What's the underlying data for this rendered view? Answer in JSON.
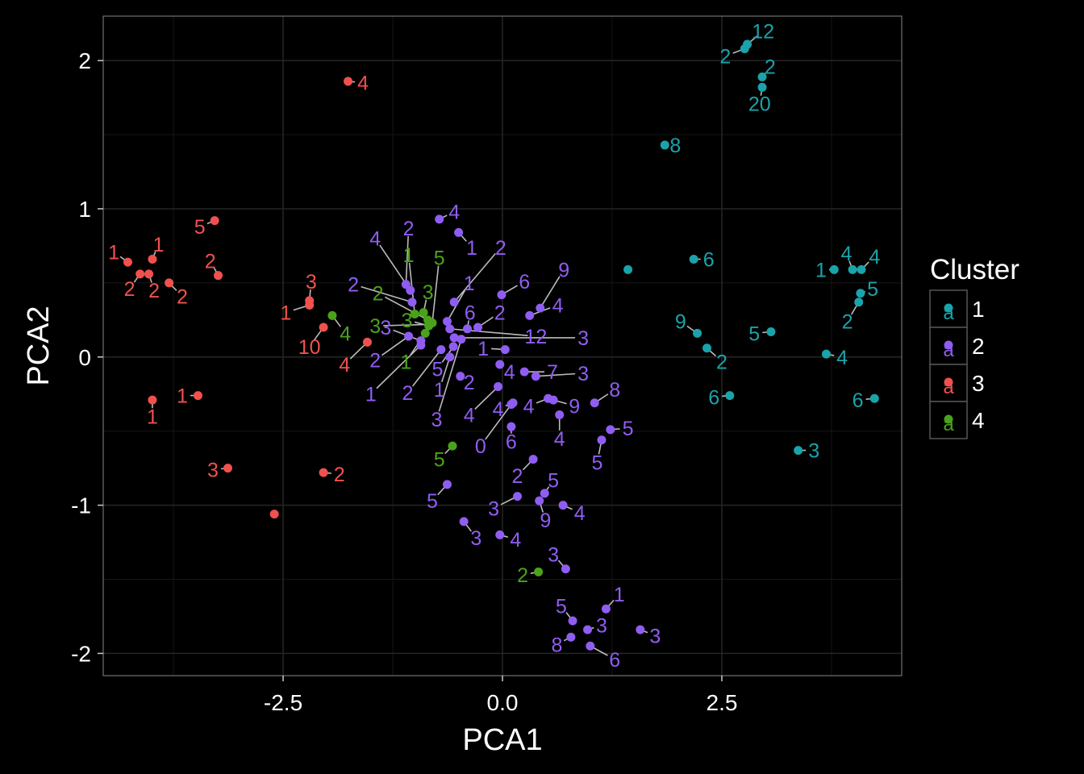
{
  "chart_data": {
    "type": "scatter",
    "title": "",
    "xlabel": "PCA1",
    "ylabel": "PCA2",
    "xlim": [
      -4.55,
      4.55
    ],
    "ylim": [
      -2.15,
      2.3
    ],
    "x_ticks": [
      -2.5,
      0.0,
      2.5
    ],
    "x_tick_labels": [
      "-2.5",
      "0.0",
      "2.5"
    ],
    "y_ticks": [
      -2,
      -1,
      0,
      1,
      2
    ],
    "y_tick_labels": [
      "-2",
      "-1",
      "0",
      "1",
      "2"
    ],
    "grid": true,
    "legend_position": "right",
    "legend": {
      "title": "Cluster",
      "glyph": "a",
      "entries": [
        {
          "label": "1",
          "cluster": "1"
        },
        {
          "label": "2",
          "cluster": "2"
        },
        {
          "label": "3",
          "cluster": "3"
        },
        {
          "label": "4",
          "cluster": "4"
        }
      ]
    },
    "colors": {
      "1": "#1aa3aa",
      "2": "#8f5df2",
      "3": "#f0514e",
      "4": "#4aa21a"
    },
    "background": "#000000",
    "grid_color": "#262626",
    "connector_color": "#bbbbbb",
    "points": [
      {
        "cluster": "1",
        "x": 2.79,
        "y": 2.11,
        "label": "12",
        "lx": 2.97,
        "ly": 2.2
      },
      {
        "cluster": "1",
        "x": 2.76,
        "y": 2.08,
        "label": "2",
        "lx": 2.54,
        "ly": 2.03
      },
      {
        "cluster": "1",
        "x": 2.96,
        "y": 1.89,
        "label": "2",
        "lx": 3.05,
        "ly": 1.96
      },
      {
        "cluster": "1",
        "x": 2.96,
        "y": 1.82,
        "label": "20",
        "lx": 2.93,
        "ly": 1.71
      },
      {
        "cluster": "1",
        "x": 1.85,
        "y": 1.43,
        "label": "8",
        "lx": 1.97,
        "ly": 1.43
      },
      {
        "cluster": "1",
        "x": 2.18,
        "y": 0.66,
        "label": "6",
        "lx": 2.35,
        "ly": 0.66
      },
      {
        "cluster": "1",
        "x": 1.43,
        "y": 0.59,
        "label": "",
        "lx": 1.43,
        "ly": 0.59
      },
      {
        "cluster": "1",
        "x": 3.78,
        "y": 0.59,
        "label": "1",
        "lx": 3.63,
        "ly": 0.59
      },
      {
        "cluster": "1",
        "x": 3.99,
        "y": 0.59,
        "label": "4",
        "lx": 3.92,
        "ly": 0.7
      },
      {
        "cluster": "1",
        "x": 4.09,
        "y": 0.59,
        "label": "4",
        "lx": 4.24,
        "ly": 0.68
      },
      {
        "cluster": "1",
        "x": 4.08,
        "y": 0.43,
        "label": "5",
        "lx": 4.22,
        "ly": 0.46
      },
      {
        "cluster": "1",
        "x": 4.06,
        "y": 0.37,
        "label": "2",
        "lx": 3.93,
        "ly": 0.24
      },
      {
        "cluster": "1",
        "x": 2.22,
        "y": 0.16,
        "label": "9",
        "lx": 2.03,
        "ly": 0.24
      },
      {
        "cluster": "1",
        "x": 3.06,
        "y": 0.17,
        "label": "5",
        "lx": 2.87,
        "ly": 0.16
      },
      {
        "cluster": "1",
        "x": 2.33,
        "y": 0.06,
        "label": "2",
        "lx": 2.5,
        "ly": -0.03
      },
      {
        "cluster": "1",
        "x": 3.69,
        "y": 0.02,
        "label": "4",
        "lx": 3.87,
        "ly": 0.0
      },
      {
        "cluster": "1",
        "x": 2.59,
        "y": -0.26,
        "label": "6",
        "lx": 2.41,
        "ly": -0.27
      },
      {
        "cluster": "1",
        "x": 4.24,
        "y": -0.28,
        "label": "6",
        "lx": 4.05,
        "ly": -0.29
      },
      {
        "cluster": "1",
        "x": 3.37,
        "y": -0.63,
        "label": "3",
        "lx": 3.55,
        "ly": -0.63
      },
      {
        "cluster": "2",
        "x": -0.72,
        "y": 0.93,
        "label": "4",
        "lx": -0.55,
        "ly": 0.98
      },
      {
        "cluster": "2",
        "x": -0.5,
        "y": 0.84,
        "label": "1",
        "lx": -0.35,
        "ly": 0.74
      },
      {
        "cluster": "2",
        "x": -1.1,
        "y": 0.49,
        "label": "2",
        "lx": -1.07,
        "ly": 0.87
      },
      {
        "cluster": "2",
        "x": -1.05,
        "y": 0.45,
        "label": "4",
        "lx": -1.45,
        "ly": 0.8
      },
      {
        "cluster": "2",
        "x": -0.55,
        "y": 0.37,
        "label": "2",
        "lx": -0.02,
        "ly": 0.74
      },
      {
        "cluster": "2",
        "x": -1.03,
        "y": 0.37,
        "label": "2",
        "lx": -1.7,
        "ly": 0.49
      },
      {
        "cluster": "2",
        "x": -0.63,
        "y": 0.24,
        "label": "1",
        "lx": -0.38,
        "ly": 0.5
      },
      {
        "cluster": "2",
        "x": -0.01,
        "y": 0.42,
        "label": "6",
        "lx": 0.25,
        "ly": 0.51
      },
      {
        "cluster": "2",
        "x": 0.43,
        "y": 0.33,
        "label": "9",
        "lx": 0.7,
        "ly": 0.59
      },
      {
        "cluster": "2",
        "x": 0.31,
        "y": 0.28,
        "label": "4",
        "lx": 0.63,
        "ly": 0.35
      },
      {
        "cluster": "2",
        "x": -0.4,
        "y": 0.19,
        "label": "6",
        "lx": -0.37,
        "ly": 0.3
      },
      {
        "cluster": "2",
        "x": -0.28,
        "y": 0.2,
        "label": "2",
        "lx": -0.03,
        "ly": 0.3
      },
      {
        "cluster": "2",
        "x": -0.6,
        "y": 0.19,
        "label": "12",
        "lx": 0.38,
        "ly": 0.14
      },
      {
        "cluster": "2",
        "x": -0.55,
        "y": 0.13,
        "label": "3",
        "lx": 0.92,
        "ly": 0.13
      },
      {
        "cluster": "2",
        "x": -0.93,
        "y": 0.11,
        "label": "3",
        "lx": -1.33,
        "ly": 0.2
      },
      {
        "cluster": "2",
        "x": -0.56,
        "y": 0.07,
        "label": "5",
        "lx": -0.74,
        "ly": -0.08
      },
      {
        "cluster": "2",
        "x": 0.03,
        "y": 0.05,
        "label": "1",
        "lx": -0.22,
        "ly": 0.06
      },
      {
        "cluster": "2",
        "x": -1.07,
        "y": 0.14,
        "label": "2",
        "lx": -1.45,
        "ly": -0.02
      },
      {
        "cluster": "2",
        "x": -0.03,
        "y": -0.05,
        "label": "4",
        "lx": 0.08,
        "ly": -0.1
      },
      {
        "cluster": "2",
        "x": 0.25,
        "y": -0.1,
        "label": "7",
        "lx": 0.57,
        "ly": -0.1
      },
      {
        "cluster": "2",
        "x": 0.38,
        "y": -0.13,
        "label": "3",
        "lx": 0.92,
        "ly": -0.11
      },
      {
        "cluster": "2",
        "x": -0.48,
        "y": -0.13,
        "label": "2",
        "lx": -0.38,
        "ly": -0.17
      },
      {
        "cluster": "2",
        "x": -0.93,
        "y": 0.08,
        "label": "1",
        "lx": -1.5,
        "ly": -0.25
      },
      {
        "cluster": "2",
        "x": -0.7,
        "y": 0.05,
        "label": "2",
        "lx": -1.08,
        "ly": -0.24
      },
      {
        "cluster": "2",
        "x": -0.6,
        "y": 0.0,
        "label": "1",
        "lx": -0.72,
        "ly": -0.22
      },
      {
        "cluster": "2",
        "x": -0.47,
        "y": 0.12,
        "label": "3",
        "lx": -0.75,
        "ly": -0.42
      },
      {
        "cluster": "2",
        "x": -0.05,
        "y": -0.2,
        "label": "4",
        "lx": -0.38,
        "ly": -0.39
      },
      {
        "cluster": "2",
        "x": 0.12,
        "y": -0.31,
        "label": "4",
        "lx": -0.05,
        "ly": -0.35
      },
      {
        "cluster": "2",
        "x": 0.52,
        "y": -0.28,
        "label": "4",
        "lx": 0.3,
        "ly": -0.33
      },
      {
        "cluster": "2",
        "x": 0.58,
        "y": -0.29,
        "label": "9",
        "lx": 0.82,
        "ly": -0.33
      },
      {
        "cluster": "2",
        "x": 1.05,
        "y": -0.31,
        "label": "8",
        "lx": 1.28,
        "ly": -0.22
      },
      {
        "cluster": "2",
        "x": 0.1,
        "y": -0.32,
        "label": "0",
        "lx": -0.25,
        "ly": -0.6
      },
      {
        "cluster": "2",
        "x": 0.1,
        "y": -0.47,
        "label": "6",
        "lx": 0.1,
        "ly": -0.57
      },
      {
        "cluster": "2",
        "x": 0.65,
        "y": -0.39,
        "label": "4",
        "lx": 0.65,
        "ly": -0.55
      },
      {
        "cluster": "2",
        "x": 1.23,
        "y": -0.49,
        "label": "5",
        "lx": 1.43,
        "ly": -0.48
      },
      {
        "cluster": "2",
        "x": 1.13,
        "y": -0.56,
        "label": "5",
        "lx": 1.08,
        "ly": -0.71
      },
      {
        "cluster": "2",
        "x": 0.35,
        "y": -0.69,
        "label": "2",
        "lx": 0.17,
        "ly": -0.8
      },
      {
        "cluster": "2",
        "x": 0.48,
        "y": -0.92,
        "label": "5",
        "lx": 0.58,
        "ly": -0.83
      },
      {
        "cluster": "2",
        "x": -0.63,
        "y": -0.86,
        "label": "5",
        "lx": -0.8,
        "ly": -0.97
      },
      {
        "cluster": "2",
        "x": 0.17,
        "y": -0.94,
        "label": "3",
        "lx": -0.1,
        "ly": -1.02
      },
      {
        "cluster": "2",
        "x": 0.42,
        "y": -0.97,
        "label": "9",
        "lx": 0.49,
        "ly": -1.1
      },
      {
        "cluster": "2",
        "x": 0.69,
        "y": -1.0,
        "label": "4",
        "lx": 0.88,
        "ly": -1.05
      },
      {
        "cluster": "2",
        "x": -0.44,
        "y": -1.11,
        "label": "3",
        "lx": -0.3,
        "ly": -1.22
      },
      {
        "cluster": "2",
        "x": -0.03,
        "y": -1.2,
        "label": "4",
        "lx": 0.15,
        "ly": -1.23
      },
      {
        "cluster": "2",
        "x": 0.72,
        "y": -1.43,
        "label": "3",
        "lx": 0.58,
        "ly": -1.33
      },
      {
        "cluster": "2",
        "x": 1.18,
        "y": -1.7,
        "label": "1",
        "lx": 1.33,
        "ly": -1.6
      },
      {
        "cluster": "2",
        "x": 0.8,
        "y": -1.78,
        "label": "5",
        "lx": 0.67,
        "ly": -1.68
      },
      {
        "cluster": "2",
        "x": 0.97,
        "y": -1.84,
        "label": "3",
        "lx": 1.13,
        "ly": -1.81
      },
      {
        "cluster": "2",
        "x": 1.57,
        "y": -1.84,
        "label": "3",
        "lx": 1.74,
        "ly": -1.88
      },
      {
        "cluster": "2",
        "x": 0.78,
        "y": -1.89,
        "label": "8",
        "lx": 0.62,
        "ly": -1.94
      },
      {
        "cluster": "2",
        "x": 1.0,
        "y": -1.95,
        "label": "6",
        "lx": 1.28,
        "ly": -2.04
      },
      {
        "cluster": "3",
        "x": -1.76,
        "y": 1.86,
        "label": "4",
        "lx": -1.59,
        "ly": 1.85
      },
      {
        "cluster": "3",
        "x": -3.28,
        "y": 0.92,
        "label": "5",
        "lx": -3.45,
        "ly": 0.88
      },
      {
        "cluster": "3",
        "x": -4.27,
        "y": 0.64,
        "label": "1",
        "lx": -4.43,
        "ly": 0.71
      },
      {
        "cluster": "3",
        "x": -3.99,
        "y": 0.66,
        "label": "1",
        "lx": -3.92,
        "ly": 0.76
      },
      {
        "cluster": "3",
        "x": -4.13,
        "y": 0.56,
        "label": "2",
        "lx": -4.25,
        "ly": 0.46
      },
      {
        "cluster": "3",
        "x": -4.03,
        "y": 0.56,
        "label": "2",
        "lx": -3.97,
        "ly": 0.45
      },
      {
        "cluster": "3",
        "x": -3.8,
        "y": 0.5,
        "label": "2",
        "lx": -3.65,
        "ly": 0.41
      },
      {
        "cluster": "3",
        "x": -3.24,
        "y": 0.55,
        "label": "2",
        "lx": -3.33,
        "ly": 0.65
      },
      {
        "cluster": "3",
        "x": -2.2,
        "y": 0.38,
        "label": "3",
        "lx": -2.18,
        "ly": 0.51
      },
      {
        "cluster": "3",
        "x": -2.2,
        "y": 0.35,
        "label": "1",
        "lx": -2.47,
        "ly": 0.3
      },
      {
        "cluster": "3",
        "x": -2.04,
        "y": 0.2,
        "label": "10",
        "lx": -2.2,
        "ly": 0.07
      },
      {
        "cluster": "3",
        "x": -1.54,
        "y": 0.1,
        "label": "4",
        "lx": -1.8,
        "ly": -0.05
      },
      {
        "cluster": "3",
        "x": -3.99,
        "y": -0.29,
        "label": "1",
        "lx": -3.99,
        "ly": -0.4
      },
      {
        "cluster": "3",
        "x": -3.47,
        "y": -0.26,
        "label": "1",
        "lx": -3.65,
        "ly": -0.26
      },
      {
        "cluster": "3",
        "x": -3.13,
        "y": -0.75,
        "label": "3",
        "lx": -3.3,
        "ly": -0.76
      },
      {
        "cluster": "3",
        "x": -2.04,
        "y": -0.78,
        "label": "2",
        "lx": -1.86,
        "ly": -0.79
      },
      {
        "cluster": "3",
        "x": -2.6,
        "y": -1.06,
        "label": "",
        "lx": -2.6,
        "ly": -1.06
      },
      {
        "cluster": "4",
        "x": -1.94,
        "y": 0.28,
        "label": "4",
        "lx": -1.79,
        "ly": 0.16
      },
      {
        "cluster": "4",
        "x": -0.9,
        "y": 0.3,
        "label": "3",
        "lx": -0.85,
        "ly": 0.44
      },
      {
        "cluster": "4",
        "x": -0.8,
        "y": 0.23,
        "label": "5",
        "lx": -0.72,
        "ly": 0.67
      },
      {
        "cluster": "4",
        "x": -1.0,
        "y": 0.29,
        "label": "1",
        "lx": -1.07,
        "ly": 0.69
      },
      {
        "cluster": "4",
        "x": -0.85,
        "y": 0.25,
        "label": "2",
        "lx": -1.42,
        "ly": 0.43
      },
      {
        "cluster": "4",
        "x": -0.83,
        "y": 0.22,
        "label": "3",
        "lx": -1.45,
        "ly": 0.21
      },
      {
        "cluster": "4",
        "x": -0.84,
        "y": 0.21,
        "label": "3",
        "lx": -1.09,
        "ly": 0.25
      },
      {
        "cluster": "4",
        "x": -0.88,
        "y": 0.16,
        "label": "1",
        "lx": -1.1,
        "ly": -0.03
      },
      {
        "cluster": "4",
        "x": -0.57,
        "y": -0.6,
        "label": "5",
        "lx": -0.72,
        "ly": -0.69
      },
      {
        "cluster": "4",
        "x": 0.41,
        "y": -1.45,
        "label": "2",
        "lx": 0.23,
        "ly": -1.47
      }
    ]
  }
}
